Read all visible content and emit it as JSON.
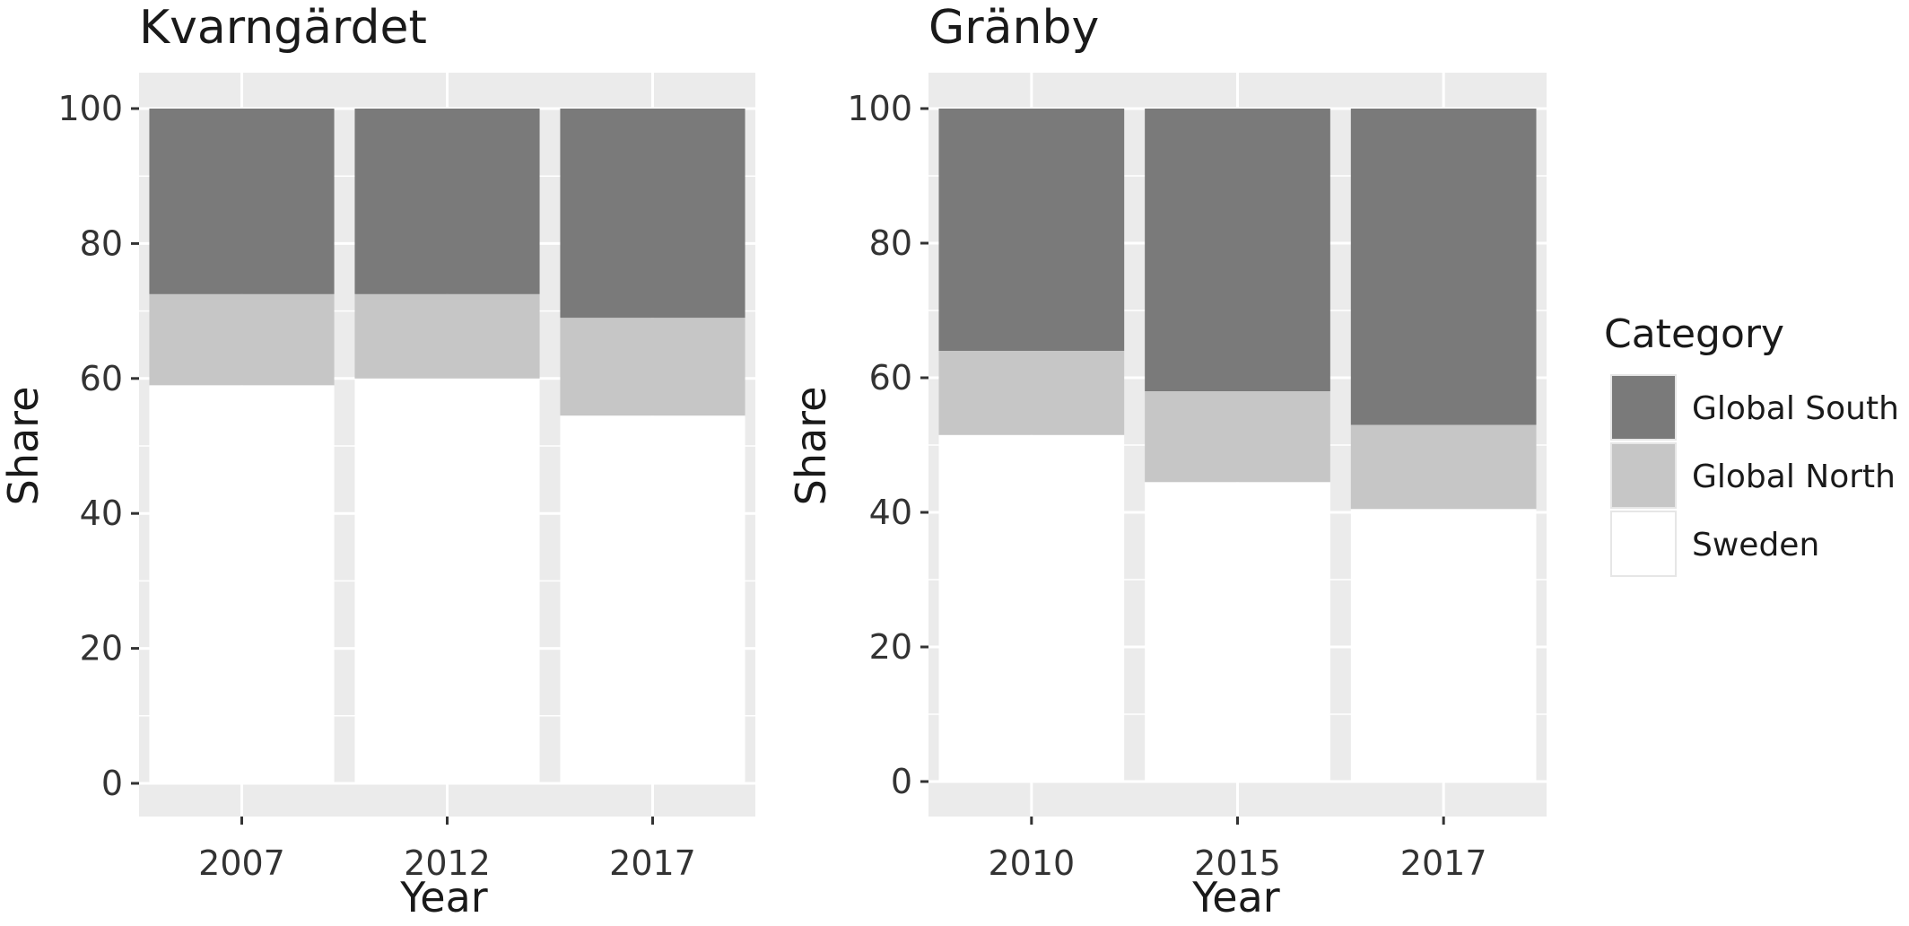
{
  "colors": {
    "panel_bg": "#ebebeb",
    "grid": "#ffffff",
    "global_south": "#7a7a7a",
    "global_north": "#c6c6c6",
    "sweden": "#ffffff"
  },
  "legend": {
    "title": "Category",
    "items": [
      {
        "label": "Global South",
        "color": "#7a7a7a"
      },
      {
        "label": "Global North",
        "color": "#c6c6c6"
      },
      {
        "label": "Sweden",
        "color": "#ffffff"
      }
    ]
  },
  "chart_data": [
    {
      "type": "bar",
      "stacked": true,
      "title": "Kvarngärdet",
      "xlabel": "Year",
      "ylabel": "Share",
      "categories": [
        "2007",
        "2012",
        "2017"
      ],
      "ylim": [
        0,
        100
      ],
      "yticks": [
        0,
        20,
        40,
        60,
        80,
        100
      ],
      "grid": true,
      "series": [
        {
          "name": "Sweden",
          "values": [
            59,
            60,
            54.5
          ]
        },
        {
          "name": "Global North",
          "values": [
            13.5,
            12.5,
            14.5
          ]
        },
        {
          "name": "Global South",
          "values": [
            27.5,
            27.5,
            31
          ]
        }
      ]
    },
    {
      "type": "bar",
      "stacked": true,
      "title": "Gränby",
      "xlabel": "Year",
      "ylabel": "Share",
      "categories": [
        "2010",
        "2015",
        "2017"
      ],
      "ylim": [
        0,
        100
      ],
      "yticks": [
        0,
        20,
        40,
        60,
        80,
        100
      ],
      "grid": true,
      "series": [
        {
          "name": "Sweden",
          "values": [
            51.5,
            44.5,
            40.5
          ]
        },
        {
          "name": "Global North",
          "values": [
            12.5,
            13.5,
            12.5
          ]
        },
        {
          "name": "Global South",
          "values": [
            36,
            42,
            47
          ]
        }
      ]
    }
  ]
}
